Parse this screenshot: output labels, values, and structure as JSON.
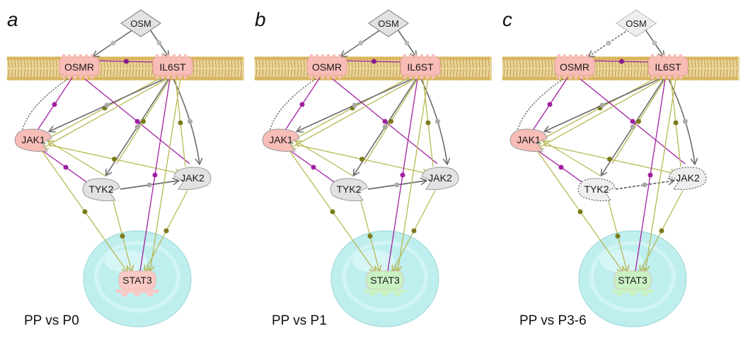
{
  "panels": [
    {
      "letter": "a",
      "caption": "PP vs P0",
      "colors": {
        "stat3": "#f9c9c4",
        "tyk2": "#e2e2e2",
        "jak2": "#e2e2e2",
        "osm": "#e2e2e2"
      },
      "dashed": false
    },
    {
      "letter": "b",
      "caption": "PP vs P1",
      "colors": {
        "stat3": "#c9f2c4",
        "tyk2": "#e2e2e2",
        "jak2": "#e2e2e2",
        "osm": "#e2e2e2"
      },
      "dashed": false
    },
    {
      "letter": "c",
      "caption": "PP vs P3-6",
      "colors": {
        "stat3": "#c9f2c4",
        "tyk2": "#eeeeee",
        "jak2": "#eeeeee",
        "osm": "#eeeeee"
      },
      "dashed": true
    }
  ],
  "nodes": {
    "osm": "OSM",
    "osmr": "OSMR",
    "il6st": "IL6ST",
    "jak1": "JAK1",
    "tyk2": "TYK2",
    "jak2": "JAK2",
    "stat3": "STAT3"
  },
  "palette": {
    "receptor": "#f7bdb6",
    "jak1": "#f7bdb6",
    "membrane": "#d8b45e",
    "nucleus": "#bfeeee",
    "edge_gray": "#6b6b6b",
    "edge_olive": "#b8b856",
    "edge_purple": "#a020a0"
  }
}
